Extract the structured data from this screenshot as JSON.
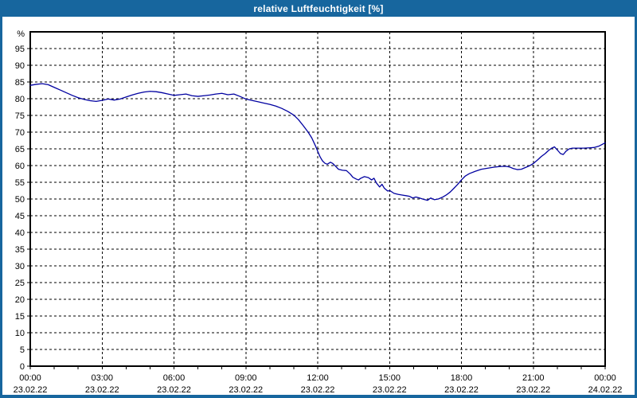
{
  "window": {
    "title": "relative Luftfeuchtigkeit [%]"
  },
  "colors": {
    "titlebar_background": "#17669e",
    "window_border": "#17669e",
    "plot_background": "#ffffff",
    "frame": "#000000",
    "gridline": "#000000",
    "tick_text": "#000000",
    "series_line": "#0000a0"
  },
  "chart_data": {
    "type": "line",
    "title": "relative Luftfeuchtigkeit [%]",
    "xlabel": "",
    "ylabel": "%",
    "ylim": [
      0,
      100
    ],
    "ytick_step": 5,
    "yticks": [
      0,
      5,
      10,
      15,
      20,
      25,
      30,
      35,
      40,
      45,
      50,
      55,
      60,
      65,
      70,
      75,
      80,
      85,
      90,
      95
    ],
    "grid": "dashed, horizontal every 5 %, vertical every 3 h",
    "legend": "none",
    "x_total_minutes": 1440,
    "x_minor_tick_minutes": 60,
    "xticks": [
      {
        "minutes": 0,
        "time": "00:00",
        "date": "23.02.22"
      },
      {
        "minutes": 180,
        "time": "03:00",
        "date": "23.02.22"
      },
      {
        "minutes": 360,
        "time": "06:00",
        "date": "23.02.22"
      },
      {
        "minutes": 540,
        "time": "09:00",
        "date": "23.02.22"
      },
      {
        "minutes": 720,
        "time": "12:00",
        "date": "23.02.22"
      },
      {
        "minutes": 900,
        "time": "15:00",
        "date": "23.02.22"
      },
      {
        "minutes": 1080,
        "time": "18:00",
        "date": "23.02.22"
      },
      {
        "minutes": 1260,
        "time": "21:00",
        "date": "23.02.22"
      },
      {
        "minutes": 1440,
        "time": "00:00",
        "date": "24.02.22"
      }
    ],
    "series": [
      {
        "name": "relative Luftfeuchtigkeit",
        "unit": "%",
        "points": [
          [
            0,
            84.0
          ],
          [
            15,
            84.3
          ],
          [
            30,
            84.5
          ],
          [
            45,
            84.2
          ],
          [
            60,
            83.4
          ],
          [
            75,
            82.6
          ],
          [
            90,
            81.8
          ],
          [
            105,
            81.0
          ],
          [
            120,
            80.3
          ],
          [
            135,
            79.8
          ],
          [
            150,
            79.4
          ],
          [
            165,
            79.2
          ],
          [
            180,
            79.5
          ],
          [
            195,
            79.9
          ],
          [
            210,
            79.6
          ],
          [
            225,
            79.9
          ],
          [
            240,
            80.5
          ],
          [
            255,
            81.1
          ],
          [
            270,
            81.6
          ],
          [
            285,
            82.0
          ],
          [
            300,
            82.2
          ],
          [
            315,
            82.1
          ],
          [
            330,
            81.8
          ],
          [
            345,
            81.4
          ],
          [
            360,
            81.0
          ],
          [
            375,
            81.2
          ],
          [
            390,
            81.4
          ],
          [
            405,
            80.9
          ],
          [
            420,
            80.7
          ],
          [
            435,
            80.9
          ],
          [
            450,
            81.1
          ],
          [
            465,
            81.4
          ],
          [
            480,
            81.6
          ],
          [
            495,
            81.2
          ],
          [
            510,
            81.4
          ],
          [
            525,
            80.7
          ],
          [
            540,
            79.9
          ],
          [
            555,
            79.5
          ],
          [
            570,
            79.1
          ],
          [
            585,
            78.7
          ],
          [
            600,
            78.3
          ],
          [
            615,
            77.8
          ],
          [
            630,
            77.1
          ],
          [
            645,
            76.2
          ],
          [
            660,
            75.1
          ],
          [
            672,
            73.7
          ],
          [
            684,
            71.9
          ],
          [
            696,
            70.0
          ],
          [
            705,
            68.3
          ],
          [
            714,
            66.0
          ],
          [
            720,
            64.3
          ],
          [
            726,
            62.6
          ],
          [
            732,
            61.4
          ],
          [
            738,
            60.7
          ],
          [
            744,
            60.4
          ],
          [
            752,
            61.0
          ],
          [
            758,
            60.6
          ],
          [
            764,
            59.9
          ],
          [
            772,
            58.9
          ],
          [
            782,
            58.6
          ],
          [
            792,
            58.5
          ],
          [
            802,
            57.4
          ],
          [
            808,
            56.5
          ],
          [
            816,
            56.0
          ],
          [
            822,
            55.7
          ],
          [
            828,
            56.2
          ],
          [
            837,
            56.7
          ],
          [
            847,
            56.4
          ],
          [
            855,
            55.7
          ],
          [
            861,
            56.2
          ],
          [
            867,
            54.8
          ],
          [
            875,
            53.6
          ],
          [
            881,
            54.4
          ],
          [
            887,
            53.2
          ],
          [
            895,
            52.4
          ],
          [
            901,
            52.5
          ],
          [
            911,
            51.7
          ],
          [
            921,
            51.4
          ],
          [
            931,
            51.2
          ],
          [
            941,
            51.0
          ],
          [
            950,
            50.8
          ],
          [
            958,
            50.3
          ],
          [
            966,
            50.6
          ],
          [
            975,
            50.3
          ],
          [
            985,
            49.9
          ],
          [
            995,
            49.6
          ],
          [
            1003,
            50.3
          ],
          [
            1012,
            49.8
          ],
          [
            1022,
            50.0
          ],
          [
            1032,
            50.5
          ],
          [
            1042,
            51.2
          ],
          [
            1052,
            52.1
          ],
          [
            1062,
            53.3
          ],
          [
            1070,
            54.3
          ],
          [
            1080,
            55.7
          ],
          [
            1090,
            56.9
          ],
          [
            1100,
            57.6
          ],
          [
            1115,
            58.3
          ],
          [
            1130,
            58.9
          ],
          [
            1145,
            59.2
          ],
          [
            1160,
            59.5
          ],
          [
            1175,
            59.7
          ],
          [
            1190,
            59.8
          ],
          [
            1200,
            59.6
          ],
          [
            1210,
            59.1
          ],
          [
            1220,
            58.8
          ],
          [
            1230,
            58.9
          ],
          [
            1240,
            59.4
          ],
          [
            1250,
            59.9
          ],
          [
            1260,
            60.6
          ],
          [
            1270,
            61.6
          ],
          [
            1280,
            62.7
          ],
          [
            1290,
            63.6
          ],
          [
            1298,
            64.5
          ],
          [
            1306,
            65.2
          ],
          [
            1313,
            65.6
          ],
          [
            1320,
            64.7
          ],
          [
            1328,
            63.6
          ],
          [
            1335,
            63.3
          ],
          [
            1342,
            64.3
          ],
          [
            1350,
            65.0
          ],
          [
            1358,
            65.2
          ],
          [
            1372,
            65.2
          ],
          [
            1386,
            65.2
          ],
          [
            1400,
            65.3
          ],
          [
            1412,
            65.4
          ],
          [
            1424,
            65.8
          ],
          [
            1432,
            66.3
          ],
          [
            1440,
            66.8
          ]
        ]
      }
    ]
  }
}
